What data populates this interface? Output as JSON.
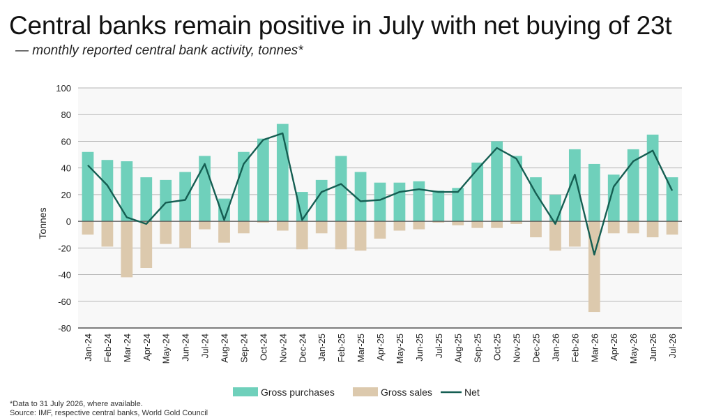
{
  "header": {
    "title": "Central banks remain positive in July with net buying of 23t",
    "subtitle": "— monthly reported central bank activity, tonnes*"
  },
  "footer": {
    "footnote": "*Data to 31 July 2026, where available.",
    "source": "Source: IMF, respective central banks, World Gold Council"
  },
  "colors": {
    "purchases": "#6fd0bb",
    "sales": "#dcc9ad",
    "net": "#155e52",
    "grid": "#b5b5b5",
    "plot_background": "#f8f8f8"
  },
  "chart_data": {
    "type": "bar",
    "categories": [
      "Jan-24",
      "Feb-24",
      "Mar-24",
      "Apr-24",
      "May-24",
      "Jun-24",
      "Jul-24",
      "Aug-24",
      "Sep-24",
      "Oct-24",
      "Nov-24",
      "Dec-24",
      "Jan-25",
      "Feb-25",
      "Mar-25",
      "Apr-25",
      "May-25",
      "Jun-25",
      "Jul-25",
      "Aug-25",
      "Sep-25",
      "Oct-25",
      "Nov-25",
      "Dec-25",
      "Jan-26",
      "Feb-26",
      "Mar-26",
      "Apr-26",
      "May-26",
      "Jun-26",
      "Jul-26"
    ],
    "series": [
      {
        "name": "Gross purchases",
        "type": "bar",
        "values": [
          52,
          46,
          45,
          33,
          31,
          37,
          49,
          17,
          52,
          62,
          73,
          22,
          31,
          49,
          37,
          29,
          29,
          30,
          23,
          25,
          44,
          60,
          49,
          33,
          20,
          54,
          43,
          35,
          54,
          65,
          33
        ]
      },
      {
        "name": "Gross sales",
        "type": "bar",
        "values": [
          -10,
          -19,
          -42,
          -35,
          -17,
          -20,
          -6,
          -16,
          -9,
          -1,
          -7,
          -21,
          -9,
          -21,
          -22,
          -13,
          -7,
          -6,
          -1,
          -3,
          -5,
          -5,
          -2,
          -12,
          -22,
          -19,
          -68,
          -9,
          -9,
          -12,
          -10
        ]
      },
      {
        "name": "Net",
        "type": "line",
        "values": [
          42,
          27,
          3,
          -2,
          14,
          16,
          43,
          1,
          43,
          61,
          66,
          1,
          22,
          28,
          15,
          16,
          22,
          24,
          22,
          22,
          39,
          55,
          47,
          21,
          -2,
          35,
          -25,
          26,
          45,
          53,
          23
        ]
      }
    ],
    "xlabel": "",
    "ylabel": "Tonnes",
    "ylim": [
      -80,
      100
    ],
    "yticks": [
      100,
      80,
      60,
      40,
      20,
      0,
      -20,
      -40,
      -60,
      -80
    ],
    "grid": true,
    "legend_position": "bottom-center"
  }
}
